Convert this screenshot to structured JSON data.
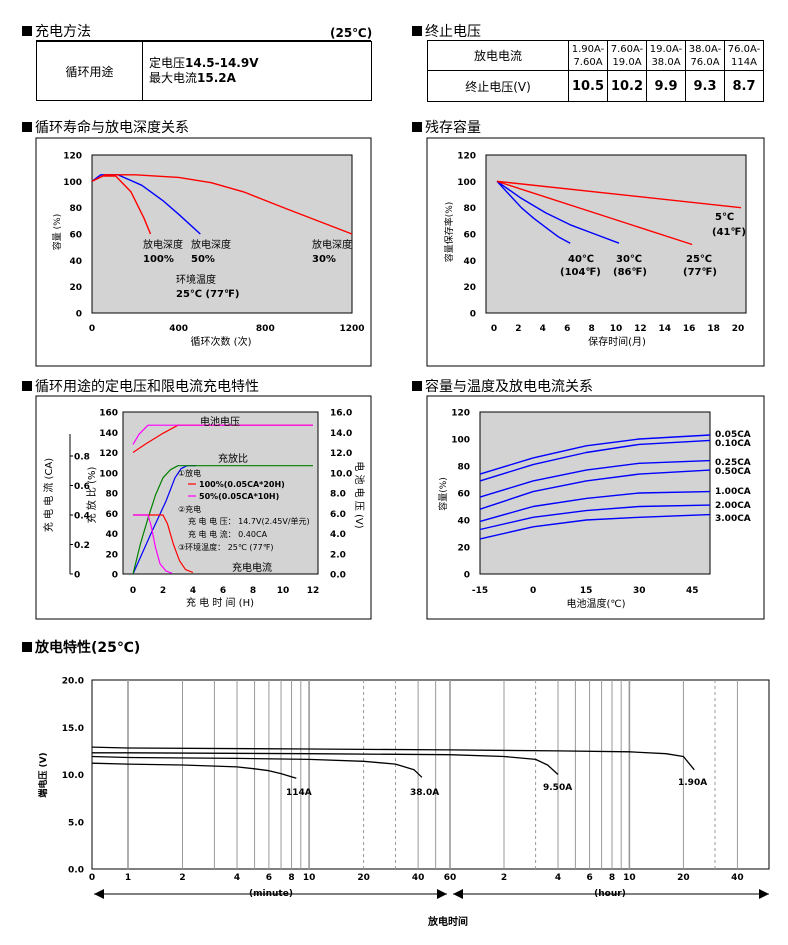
{
  "sections": {
    "charge_method": "充电方法",
    "charge_temp": "(25℃)",
    "end_voltage": "终止电压",
    "cycle_life": "循环寿命与放电深度关系",
    "residual": "残存容量",
    "charge_char": "循环用途的定电压和限电流充电特性",
    "cap_temp": "容量与温度及放电电流关系",
    "discharge": "放电特性(25℃)"
  },
  "charge_table": {
    "usage": "循环用途",
    "line1_prefix": "定电压",
    "line1_value": "14.5-14.9V",
    "line2_prefix": "最大电流",
    "line2_value": "15.2A"
  },
  "end_table": {
    "row1_label": "放电电流",
    "row2_label": "终止电压(V)",
    "currents": [
      {
        "top": "1.90A-",
        "bottom": "7.60A"
      },
      {
        "top": "7.60A-",
        "bottom": "19.0A"
      },
      {
        "top": "19.0A-",
        "bottom": "38.0A"
      },
      {
        "top": "38.0A-",
        "bottom": "76.0A"
      },
      {
        "top": "76.0A-",
        "bottom": "114A"
      }
    ],
    "voltages": [
      "10.5",
      "10.2",
      "9.9",
      "9.3",
      "8.7"
    ]
  },
  "chart_data": [
    {
      "id": "cycle_life",
      "type": "line",
      "xlabel": "循环次数 (次)",
      "ylabel": "容量 (%)",
      "xlim": [
        0,
        1200
      ],
      "ylim": [
        0,
        120
      ],
      "xticks": [
        "0",
        "400",
        "800",
        "1200"
      ],
      "yticks": [
        "0",
        "20",
        "40",
        "60",
        "80",
        "100",
        "120"
      ],
      "grid": false,
      "series": [
        {
          "color": "#ff0000",
          "x": [
            0,
            50,
            110,
            180,
            240,
            270
          ],
          "y": [
            100,
            104,
            104,
            92,
            72,
            60
          ]
        },
        {
          "color": "#0000ff",
          "x": [
            0,
            40,
            120,
            230,
            330,
            400,
            500
          ],
          "y": [
            100,
            105,
            105,
            97,
            85,
            75,
            60
          ]
        },
        {
          "color": "#ff0000",
          "x": [
            0,
            60,
            200,
            400,
            550,
            700,
            900,
            1200
          ],
          "y": [
            100,
            105,
            105,
            103,
            99,
            92,
            79,
            60
          ]
        }
      ],
      "annotations": [
        {
          "line1": "放电深度",
          "line2": "100%"
        },
        {
          "line1": "放电深度",
          "line2": "50%"
        },
        {
          "line1": "放电深度",
          "line2": "30%"
        },
        {
          "line1": "环境温度",
          "line2": "25℃ (77℉)"
        }
      ]
    },
    {
      "id": "residual",
      "type": "line",
      "xlabel": "保存时间(月)",
      "ylabel": "容量保存率(%)",
      "xlim": [
        0,
        22
      ],
      "ylim": [
        0,
        120
      ],
      "xticks": [
        "0",
        "2",
        "4",
        "6",
        "8",
        "10",
        "12",
        "14",
        "16",
        "18",
        "20"
      ],
      "yticks": [
        "0",
        "20",
        "40",
        "60",
        "80",
        "100",
        "120"
      ],
      "grid": false,
      "series": [
        {
          "color": "#0000ff",
          "x": [
            0,
            1,
            2,
            3,
            4,
            5,
            6
          ],
          "y": [
            100,
            90,
            80,
            72,
            65,
            58,
            53
          ]
        },
        {
          "color": "#0000ff",
          "x": [
            0,
            2,
            4,
            6,
            8,
            10
          ],
          "y": [
            100,
            87,
            76,
            67,
            60,
            53
          ]
        },
        {
          "color": "#ff0000",
          "x": [
            0,
            16
          ],
          "y": [
            100,
            52
          ]
        },
        {
          "color": "#ff0000",
          "x": [
            0,
            20
          ],
          "y": [
            100,
            80
          ]
        }
      ],
      "annotations": [
        {
          "line1": "40℃",
          "line2": "(104℉)"
        },
        {
          "line1": "30℃",
          "line2": "(86℉)"
        },
        {
          "line1": "25℃",
          "line2": "(77℉)"
        },
        {
          "line1": "5℃",
          "line2": "(41℉)"
        }
      ]
    },
    {
      "id": "charge_characteristics",
      "type": "line",
      "xlabel": "充 电 时 间 (H)",
      "ylabel_left_outer": "充 电 电 流  (CA)",
      "ylabel_left_inner": "充 放 比 (%)",
      "ylabel_right": "电 池 电 压  (V)",
      "xlim": [
        0,
        12
      ],
      "ylim_ratio": [
        0,
        160
      ],
      "ylim_voltage": [
        0,
        16
      ],
      "ylim_current": [
        0,
        1.0
      ],
      "xticks": [
        "0",
        "2",
        "4",
        "6",
        "8",
        "10",
        "12"
      ],
      "yticks_ratio": [
        "0",
        "20",
        "40",
        "60",
        "80",
        "100",
        "120",
        "140",
        "160"
      ],
      "yticks_voltage": [
        "0.0",
        "2.0",
        "4.0",
        "6.0",
        "8.0",
        "10.0",
        "12.0",
        "14.0",
        "16.0"
      ],
      "yticks_current": [
        "0",
        "0.2",
        "0.4",
        "0.6",
        "0.8"
      ],
      "labels": {
        "battery_voltage": "电池电压",
        "charge_ratio": "充放比",
        "charge_current": "充电电流",
        "discharge_title": "①放电",
        "legend_100": "100%(0.05CA*20H)",
        "legend_50": "50%(0.05CA*10H)",
        "charge_title": "②充电",
        "charge_voltage": "充 电 电 压： 14.7V(2.45V/单元)",
        "charge_current_val": "充 电 电 流： 0.40CA",
        "ambient": "③环境温度： 25℃ (77℉)"
      },
      "series": [
        {
          "name": "100%(0.05CA*20H)",
          "quantity": "voltage",
          "color": "#ff0000",
          "x": [
            0,
            0.8,
            2,
            3,
            12
          ],
          "y": [
            12.0,
            12.8,
            13.9,
            14.7,
            14.7
          ]
        },
        {
          "name": "50%(0.05CA*10H)",
          "quantity": "voltage",
          "color": "#ff00ff",
          "x": [
            0,
            0.4,
            1,
            12
          ],
          "y": [
            12.8,
            13.8,
            14.7,
            14.7
          ]
        },
        {
          "name": "100%(0.05CA*20H)",
          "quantity": "ratio",
          "color": "#0000ff",
          "x": [
            0,
            1.2,
            2.2,
            2.8,
            3.2,
            3.6,
            4.2
          ],
          "y": [
            0,
            40,
            72,
            95,
            104,
            107,
            107
          ]
        },
        {
          "name": "50%(0.05CA*10H)",
          "quantity": "ratio",
          "color": "#008000",
          "x": [
            0,
            0.5,
            1,
            1.5,
            2,
            2.5,
            3,
            12
          ],
          "y": [
            0,
            30,
            55,
            78,
            95,
            103,
            107,
            107
          ]
        },
        {
          "name": "100%(0.05CA*20H)",
          "quantity": "current",
          "color": "#ff0000",
          "x": [
            0,
            2,
            2.3,
            2.7,
            3.1,
            3.5,
            4
          ],
          "y": [
            0.4,
            0.4,
            0.34,
            0.2,
            0.09,
            0.03,
            0.01
          ]
        },
        {
          "name": "50%(0.05CA*10H)",
          "quantity": "current",
          "color": "#ff00ff",
          "x": [
            0,
            1,
            1.2,
            1.5,
            1.8,
            2.2,
            2.6
          ],
          "y": [
            0.4,
            0.4,
            0.33,
            0.18,
            0.07,
            0.02,
            0.005
          ]
        }
      ]
    },
    {
      "id": "capacity_temperature",
      "type": "line",
      "xlabel": "电池温度(℃)",
      "ylabel": "容量(%)",
      "xlim": [
        -15,
        50
      ],
      "ylim": [
        0,
        120
      ],
      "xticks": [
        "-15",
        "0",
        "15",
        "30",
        "45"
      ],
      "yticks": [
        "0",
        "20",
        "40",
        "60",
        "80",
        "100",
        "120"
      ],
      "grid": false,
      "series": [
        {
          "name": "0.05CA",
          "color": "#0000ff",
          "x": [
            -15,
            0,
            15,
            30,
            50
          ],
          "y": [
            74,
            86,
            95,
            100,
            103
          ]
        },
        {
          "name": "0.10CA",
          "color": "#0000ff",
          "x": [
            -15,
            0,
            15,
            30,
            50
          ],
          "y": [
            69,
            81,
            90,
            96,
            99
          ]
        },
        {
          "name": "0.25CA",
          "color": "#0000ff",
          "x": [
            -15,
            0,
            15,
            30,
            50
          ],
          "y": [
            57,
            69,
            77,
            82,
            84
          ]
        },
        {
          "name": "0.50CA",
          "color": "#0000ff",
          "x": [
            -15,
            0,
            15,
            30,
            50
          ],
          "y": [
            48,
            61,
            69,
            74,
            77
          ]
        },
        {
          "name": "1.00CA",
          "color": "#0000ff",
          "x": [
            -15,
            0,
            15,
            30,
            50
          ],
          "y": [
            39,
            50,
            56,
            60,
            61
          ]
        },
        {
          "name": "2.00CA",
          "color": "#0000ff",
          "x": [
            -15,
            0,
            15,
            30,
            50
          ],
          "y": [
            33,
            42,
            47,
            50,
            51
          ]
        },
        {
          "name": "3.00CA",
          "color": "#0000ff",
          "x": [
            -15,
            0,
            15,
            30,
            50
          ],
          "y": [
            26,
            35,
            40,
            42,
            44
          ]
        }
      ]
    },
    {
      "id": "discharge",
      "type": "line",
      "xlabel": "放电时间",
      "ylabel": "端电压 (V)",
      "xscale": "log",
      "ylim": [
        0,
        20
      ],
      "yticks": [
        "0.0",
        "5.0",
        "10.0",
        "15.0",
        "20.0"
      ],
      "xticks_minute": [
        "0",
        "1",
        "2",
        "4",
        "6",
        "8",
        "10",
        "20",
        "40"
      ],
      "xticks_hour": [
        "60",
        "2",
        "4",
        "6",
        "8",
        "10",
        "20",
        "40"
      ],
      "unit_minute": "(minute)",
      "unit_hour": "(hour)",
      "series": [
        {
          "name": "114A",
          "x_minutes": [
            0,
            1,
            2,
            4,
            5,
            6,
            7,
            8.5
          ],
          "y": [
            11.2,
            11.1,
            11.0,
            10.8,
            10.6,
            10.4,
            10.1,
            9.6
          ]
        },
        {
          "name": "38.0A",
          "x_minutes": [
            0,
            1,
            4,
            10,
            20,
            30,
            38,
            42
          ],
          "y": [
            11.9,
            11.8,
            11.7,
            11.6,
            11.4,
            11.1,
            10.5,
            9.7
          ]
        },
        {
          "name": "9.50A",
          "x_minutes": [
            0,
            1,
            10,
            60,
            120,
            180,
            210,
            240
          ],
          "y": [
            12.3,
            12.3,
            12.2,
            12.1,
            11.9,
            11.6,
            11.0,
            10.0
          ]
        },
        {
          "name": "1.90A",
          "x_minutes": [
            0,
            1,
            10,
            60,
            240,
            600,
            960,
            1200,
            1380
          ],
          "y": [
            12.9,
            12.8,
            12.7,
            12.6,
            12.5,
            12.4,
            12.2,
            11.9,
            10.5
          ]
        }
      ]
    }
  ]
}
